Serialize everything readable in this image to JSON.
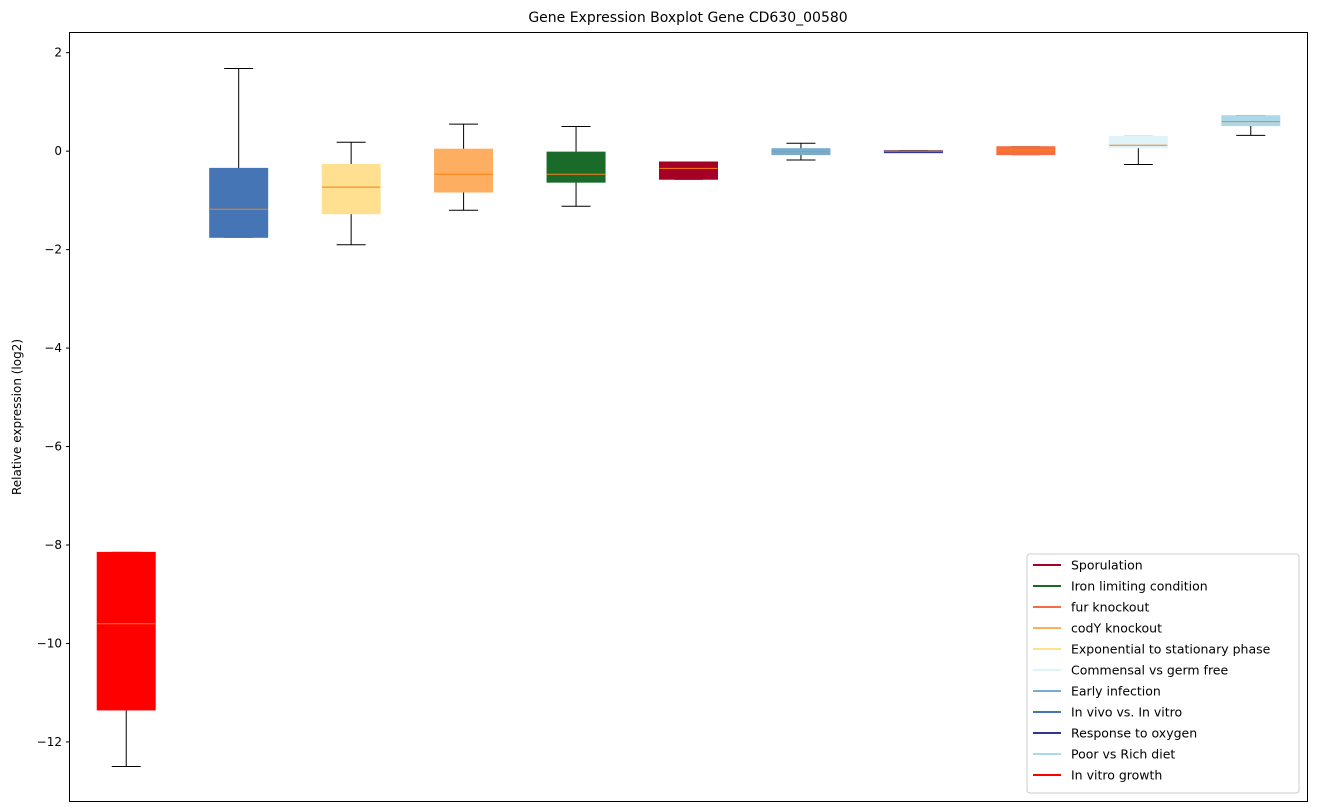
{
  "chart_data": {
    "type": "boxplot",
    "title": "Gene Expression Boxplot Gene CD630_00580",
    "xlabel": "",
    "ylabel": "Relative expression (log2)",
    "ylim": [
      -13.2,
      2.4
    ],
    "yticks": [
      2,
      0,
      -2,
      -4,
      -6,
      -8,
      -10,
      -12
    ],
    "ytick_labels": [
      "2",
      "0",
      "−2",
      "−4",
      "−6",
      "−8",
      "−10",
      "−12"
    ],
    "grid": false,
    "legend_position": "lower-right",
    "median_color": "#ff7f0e",
    "boxes": [
      {
        "series": "In vitro growth",
        "color": "#ff0000",
        "whislo": -12.5,
        "q1": -11.35,
        "med": -9.6,
        "q3": -8.15,
        "whishi": -8.15
      },
      {
        "series": "In vivo vs. In vitro",
        "color": "#4575b4",
        "whislo": -1.75,
        "q1": -1.75,
        "med": -1.18,
        "q3": -0.35,
        "whishi": 1.68
      },
      {
        "series": "Exponential to stationary phase",
        "color": "#fee090",
        "whislo": -1.9,
        "q1": -1.27,
        "med": -0.73,
        "q3": -0.27,
        "whishi": 0.18
      },
      {
        "series": "codY knockout",
        "color": "#fdae61",
        "whislo": -1.2,
        "q1": -0.83,
        "med": -0.47,
        "q3": 0.04,
        "whishi": 0.55
      },
      {
        "series": "Iron limiting condition",
        "color": "#1a6b2a",
        "whislo": -1.12,
        "q1": -0.63,
        "med": -0.47,
        "q3": -0.02,
        "whishi": 0.5
      },
      {
        "series": "Sporulation",
        "color": "#a50026",
        "whislo": -0.57,
        "q1": -0.57,
        "med": -0.35,
        "q3": -0.22,
        "whishi": -0.22
      },
      {
        "series": "Early infection",
        "color": "#74add1",
        "whislo": -0.18,
        "q1": -0.07,
        "med": -0.01,
        "q3": 0.05,
        "whishi": 0.16
      },
      {
        "series": "Response to oxygen",
        "color": "#313695",
        "whislo": -0.02,
        "q1": -0.02,
        "med": 0.0,
        "q3": 0.01,
        "whishi": 0.01
      },
      {
        "series": "fur knockout",
        "color": "#f46d43",
        "whislo": -0.07,
        "q1": -0.07,
        "med": 0.02,
        "q3": 0.09,
        "whishi": 0.09
      },
      {
        "series": "Commensal vs germ free",
        "color": "#e0f3f8",
        "whislo": -0.27,
        "q1": 0.07,
        "med": 0.12,
        "q3": 0.3,
        "whishi": 0.3
      },
      {
        "series": "Poor vs Rich diet",
        "color": "#abd9e9",
        "whislo": 0.32,
        "q1": 0.52,
        "med": 0.6,
        "q3": 0.72,
        "whishi": 0.72
      }
    ],
    "legend": [
      {
        "name": "Sporulation",
        "color": "#a50026"
      },
      {
        "name": "Iron limiting condition",
        "color": "#1a6b2a"
      },
      {
        "name": "fur knockout",
        "color": "#f46d43"
      },
      {
        "name": "codY knockout",
        "color": "#fdae61"
      },
      {
        "name": "Exponential to stationary phase",
        "color": "#fee090"
      },
      {
        "name": "Commensal vs germ free",
        "color": "#e0f3f8"
      },
      {
        "name": "Early infection",
        "color": "#74add1"
      },
      {
        "name": "In vivo vs. In vitro",
        "color": "#4575b4"
      },
      {
        "name": "Response to oxygen",
        "color": "#313695"
      },
      {
        "name": "Poor vs Rich diet",
        "color": "#abd9e9"
      },
      {
        "name": "In vitro growth",
        "color": "#ff0000"
      }
    ]
  }
}
